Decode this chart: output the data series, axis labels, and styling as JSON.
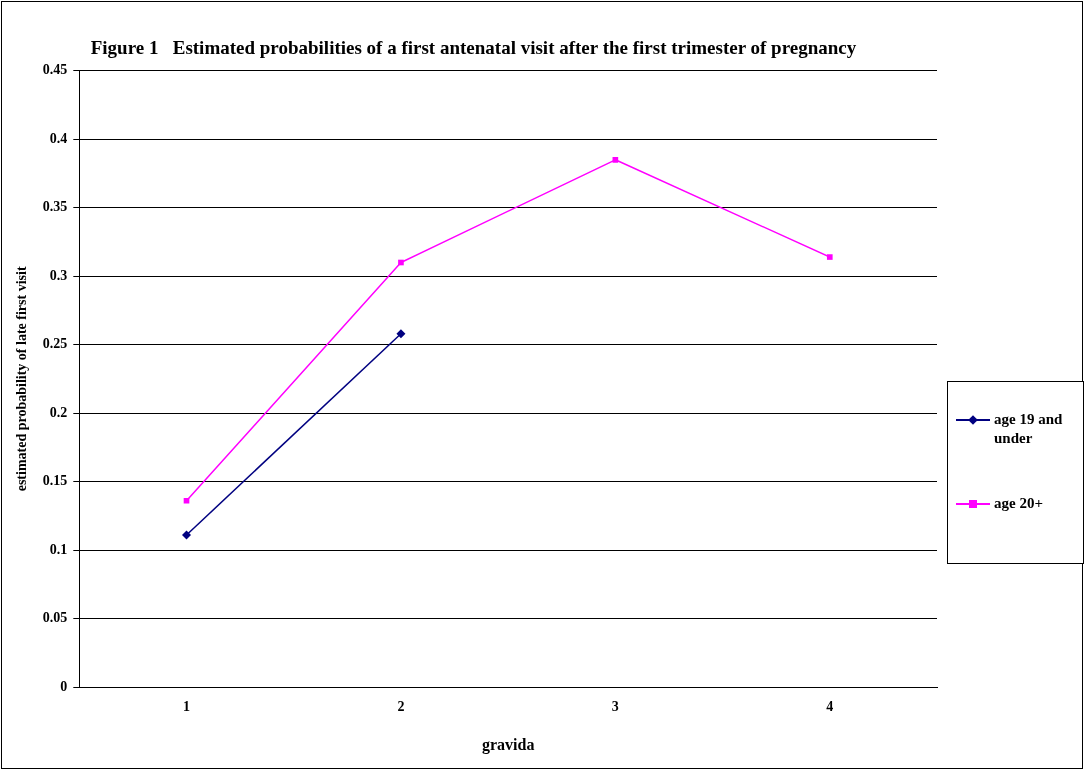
{
  "chart_data": {
    "type": "line",
    "title": "Figure 1   Estimated probabilities of a first antenatal visit after the first trimester of pregnancy",
    "xlabel": "gravida",
    "ylabel": "estimated probability of late first visit",
    "categories": [
      "1",
      "2",
      "3",
      "4"
    ],
    "ylim": [
      0,
      0.45
    ],
    "yticks": [
      0,
      0.05,
      0.1,
      0.15,
      0.2,
      0.25,
      0.3,
      0.35,
      0.4,
      0.45
    ],
    "grid": "y",
    "legend": "right",
    "line_style": "solid",
    "series": [
      {
        "name": "age 19 and under",
        "color": "#000080",
        "marker": "diamond",
        "values": [
          0.111,
          0.258,
          null,
          null
        ]
      },
      {
        "name": "age 20+",
        "color": "#ff00ff",
        "marker": "square",
        "values": [
          0.136,
          0.31,
          0.385,
          0.314
        ]
      }
    ]
  }
}
